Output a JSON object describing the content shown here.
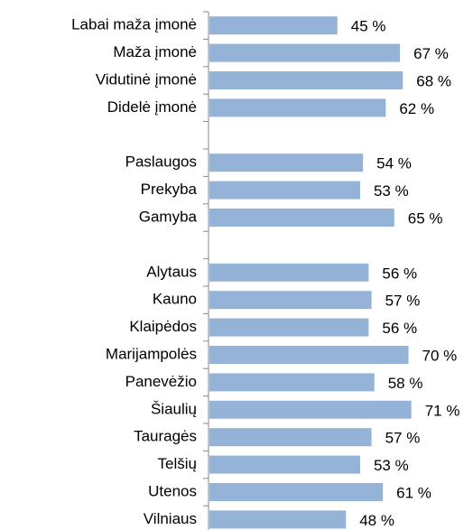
{
  "chart_data": {
    "type": "bar",
    "orientation": "horizontal",
    "categories": [
      "Labai maža įmonė",
      "Maža įmonė",
      "Vidutinė įmonė",
      "Didelė įmonė",
      null,
      "Paslaugos",
      "Prekyba",
      "Gamyba",
      null,
      "Alytaus",
      "Kauno",
      "Klaipėdos",
      "Marijampolės",
      "Panevėžio",
      "Šiaulių",
      "Tauragės",
      "Telšių",
      "Utenos",
      "Vilniaus"
    ],
    "values": [
      45,
      67,
      68,
      62,
      null,
      54,
      53,
      65,
      null,
      56,
      57,
      56,
      70,
      58,
      71,
      57,
      53,
      61,
      48
    ],
    "value_labels": [
      "45 %",
      "67 %",
      "68 %",
      "62 %",
      null,
      "54 %",
      "53 %",
      "65 %",
      null,
      "56 %",
      "57 %",
      "56 %",
      "70 %",
      "58 %",
      "71 %",
      "57 %",
      "53 %",
      "61 %",
      "48 %"
    ],
    "color": "#95b3d7",
    "xlim": [
      0,
      93
    ]
  }
}
